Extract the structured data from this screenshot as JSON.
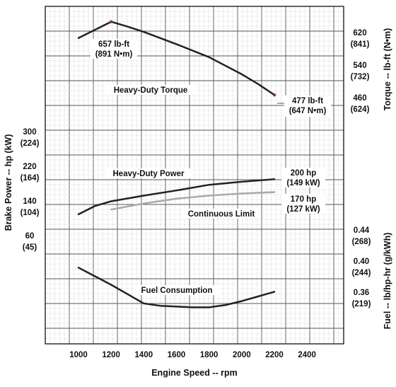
{
  "chart_data": {
    "type": "line",
    "xlabel": "Engine Speed -- rpm",
    "xlim": [
      800,
      2700
    ],
    "x_ticks": [
      "1000",
      "1200",
      "1400",
      "1600",
      "1800",
      "2000",
      "2200",
      "2400"
    ],
    "left_axis": {
      "label": "Brake Power -- hp (kW)",
      "ticks": [
        {
          "hp": 300,
          "text": "300",
          "sub": "(224)"
        },
        {
          "hp": 220,
          "text": "220",
          "sub": "(164)"
        },
        {
          "hp": 140,
          "text": "140",
          "sub": "(104)"
        },
        {
          "hp": 60,
          "text": "60",
          "sub": "(45)"
        }
      ]
    },
    "right_axis_torque": {
      "label": "Torque -- lb-ft (N•m)",
      "ticks": [
        {
          "lbft": 620,
          "text": "620",
          "sub": "(841)"
        },
        {
          "lbft": 540,
          "text": "540",
          "sub": "(732)"
        },
        {
          "lbft": 460,
          "text": "460",
          "sub": "(624)"
        }
      ]
    },
    "right_axis_fuel": {
      "label": "Fuel -- lb/hp-hr (g/kWh)",
      "ticks": [
        {
          "bsfc": 0.44,
          "text": "0.44",
          "sub": "(268)"
        },
        {
          "bsfc": 0.4,
          "text": "0.40",
          "sub": "(244)"
        },
        {
          "bsfc": 0.36,
          "text": "0.36",
          "sub": "(219)"
        }
      ]
    },
    "series": [
      {
        "name": "Heavy-Duty Torque",
        "axis": "torque",
        "color": "#222222",
        "points": [
          [
            1000,
            617
          ],
          [
            1100,
            637
          ],
          [
            1200,
            657
          ],
          [
            1300,
            645
          ],
          [
            1400,
            632
          ],
          [
            1600,
            602
          ],
          [
            1800,
            570
          ],
          [
            2000,
            528
          ],
          [
            2100,
            504
          ],
          [
            2200,
            477
          ]
        ]
      },
      {
        "name": "Heavy-Duty Power",
        "axis": "power",
        "color": "#222222",
        "points": [
          [
            1000,
            119
          ],
          [
            1100,
            138
          ],
          [
            1200,
            149
          ],
          [
            1400,
            162
          ],
          [
            1600,
            174
          ],
          [
            1800,
            187
          ],
          [
            2000,
            194
          ],
          [
            2200,
            200
          ]
        ]
      },
      {
        "name": "Continuous Limit",
        "axis": "power",
        "color": "#aaaaaa",
        "points": [
          [
            1200,
            130
          ],
          [
            1400,
            144
          ],
          [
            1600,
            155
          ],
          [
            1800,
            162
          ],
          [
            2000,
            167
          ],
          [
            2200,
            170
          ]
        ]
      },
      {
        "name": "Fuel Consumption",
        "axis": "fuel",
        "color": "#222222",
        "points": [
          [
            1000,
            0.397
          ],
          [
            1100,
            0.386
          ],
          [
            1200,
            0.375
          ],
          [
            1300,
            0.363
          ],
          [
            1400,
            0.351
          ],
          [
            1500,
            0.348
          ],
          [
            1600,
            0.347
          ],
          [
            1700,
            0.346
          ],
          [
            1800,
            0.346
          ],
          [
            1900,
            0.349
          ],
          [
            2000,
            0.354
          ],
          [
            2100,
            0.36
          ],
          [
            2200,
            0.366
          ]
        ]
      }
    ],
    "annotations": [
      {
        "line1": "657 lb-ft",
        "line2": "(891 N•m)"
      },
      {
        "line1": "477 lb-ft",
        "line2": "(647 N•m)"
      },
      {
        "line1": "200 hp",
        "line2": "(149 kW)"
      },
      {
        "line1": "170 hp",
        "line2": "(127 kW)"
      }
    ],
    "grid": true
  }
}
